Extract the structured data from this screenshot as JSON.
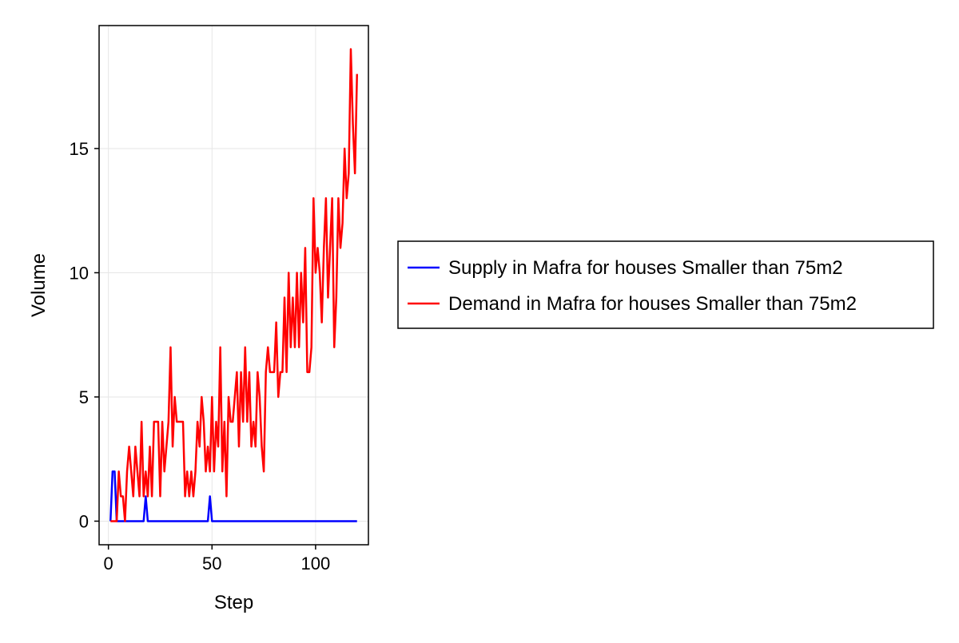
{
  "chart_data": {
    "type": "line",
    "title": "",
    "xlabel": "Step",
    "ylabel": "Volume",
    "xlim": [
      -4.5,
      125.5
    ],
    "ylim": [
      -0.95,
      19.95
    ],
    "xticks": [
      0,
      50,
      100
    ],
    "yticks": [
      0,
      5,
      10,
      15
    ],
    "grid": true,
    "legend_position": "right",
    "series": [
      {
        "name": "Supply in Mafra for houses Smaller than 75m2",
        "color": "#0000ff",
        "x": [
          1,
          2,
          3,
          4,
          5,
          6,
          7,
          8,
          9,
          10,
          11,
          12,
          13,
          14,
          15,
          16,
          17,
          18,
          19,
          20,
          21,
          22,
          23,
          24,
          25,
          26,
          27,
          28,
          29,
          30,
          31,
          32,
          33,
          34,
          35,
          36,
          37,
          38,
          39,
          40,
          41,
          42,
          43,
          44,
          45,
          46,
          47,
          48,
          49,
          50,
          51,
          52,
          53,
          54,
          55,
          56,
          57,
          58,
          59,
          60,
          61,
          62,
          63,
          64,
          65,
          66,
          67,
          68,
          69,
          70,
          71,
          72,
          73,
          74,
          75,
          76,
          77,
          78,
          79,
          80,
          81,
          82,
          83,
          84,
          85,
          86,
          87,
          88,
          89,
          90,
          91,
          92,
          93,
          94,
          95,
          96,
          97,
          98,
          99,
          100,
          101,
          102,
          103,
          104,
          105,
          106,
          107,
          108,
          109,
          110,
          111,
          112,
          113,
          114,
          115,
          116,
          117,
          118,
          119,
          120
        ],
        "y": [
          0,
          2,
          2,
          0,
          0,
          0,
          0,
          0,
          0,
          0,
          0,
          0,
          0,
          0,
          0,
          0,
          0,
          1,
          0,
          0,
          0,
          0,
          0,
          0,
          0,
          0,
          0,
          0,
          0,
          0,
          0,
          0,
          0,
          0,
          0,
          0,
          0,
          0,
          0,
          0,
          0,
          0,
          0,
          0,
          0,
          0,
          0,
          0,
          1,
          0,
          0,
          0,
          0,
          0,
          0,
          0,
          0,
          0,
          0,
          0,
          0,
          0,
          0,
          0,
          0,
          0,
          0,
          0,
          0,
          0,
          0,
          0,
          0,
          0,
          0,
          0,
          0,
          0,
          0,
          0,
          0,
          0,
          0,
          0,
          0,
          0,
          0,
          0,
          0,
          0,
          0,
          0,
          0,
          0,
          0,
          0,
          0,
          0,
          0,
          0,
          0,
          0,
          0,
          0,
          0,
          0,
          0,
          0,
          0,
          0,
          0,
          0,
          0,
          0,
          0,
          0,
          0,
          0,
          0,
          0
        ]
      },
      {
        "name": "Demand in Mafra for houses Smaller than 75m2",
        "color": "#ff0000",
        "x": [
          1,
          2,
          3,
          4,
          5,
          6,
          7,
          8,
          9,
          10,
          11,
          12,
          13,
          14,
          15,
          16,
          17,
          18,
          19,
          20,
          21,
          22,
          23,
          24,
          25,
          26,
          27,
          28,
          29,
          30,
          31,
          32,
          33,
          34,
          35,
          36,
          37,
          38,
          39,
          40,
          41,
          42,
          43,
          44,
          45,
          46,
          47,
          48,
          49,
          50,
          51,
          52,
          53,
          54,
          55,
          56,
          57,
          58,
          59,
          60,
          61,
          62,
          63,
          64,
          65,
          66,
          67,
          68,
          69,
          70,
          71,
          72,
          73,
          74,
          75,
          76,
          77,
          78,
          79,
          80,
          81,
          82,
          83,
          84,
          85,
          86,
          87,
          88,
          89,
          90,
          91,
          92,
          93,
          94,
          95,
          96,
          97,
          98,
          99,
          100,
          101,
          102,
          103,
          104,
          105,
          106,
          107,
          108,
          109,
          110,
          111,
          112,
          113,
          114,
          115,
          116,
          117,
          118,
          119,
          120
        ],
        "y": [
          0,
          0,
          0,
          0,
          2,
          1,
          1,
          0,
          2,
          3,
          2,
          1,
          3,
          2,
          1,
          4,
          1,
          2,
          1,
          3,
          1,
          4,
          4,
          4,
          1,
          4,
          2,
          3,
          4,
          7,
          3,
          5,
          4,
          4,
          4,
          4,
          1,
          2,
          1,
          2,
          1,
          2,
          4,
          3,
          5,
          4,
          2,
          3,
          2,
          5,
          2,
          4,
          3,
          7,
          2,
          4,
          1,
          5,
          4,
          4,
          5,
          6,
          3,
          6,
          4,
          7,
          4,
          6,
          3,
          4,
          3,
          6,
          5,
          3,
          2,
          6,
          7,
          6,
          6,
          6,
          8,
          5,
          6,
          6,
          9,
          6,
          10,
          7,
          9,
          7,
          10,
          7,
          10,
          8,
          11,
          6,
          6,
          7,
          13,
          10,
          11,
          10,
          8,
          11,
          13,
          9,
          11,
          13,
          7,
          9,
          13,
          11,
          12,
          15,
          13,
          14,
          19,
          16,
          14,
          18
        ]
      }
    ]
  }
}
